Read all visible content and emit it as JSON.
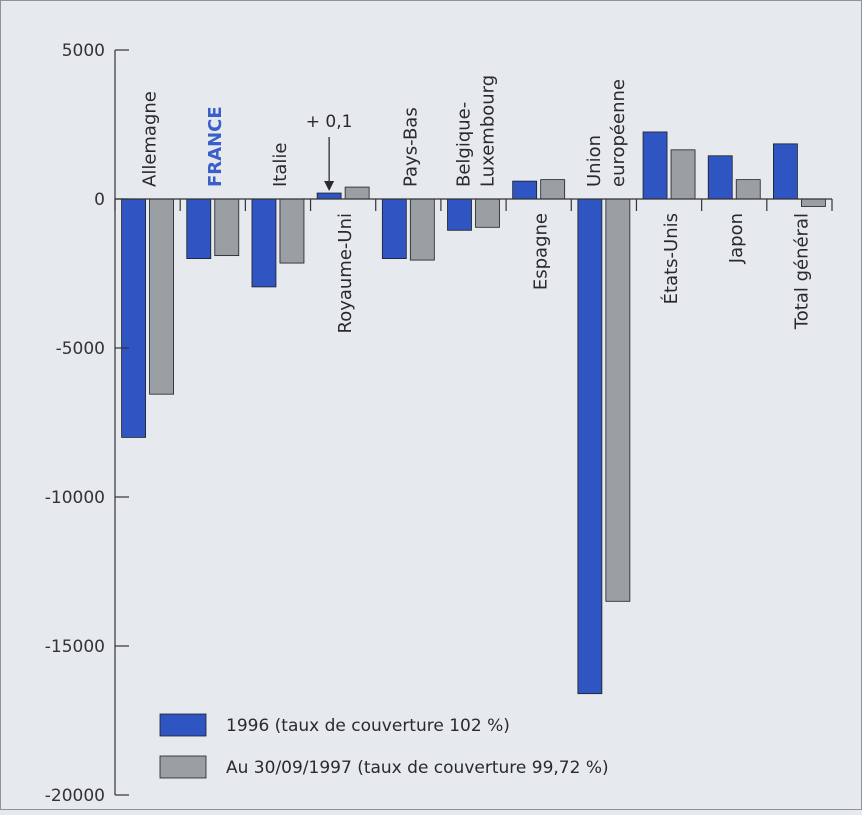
{
  "chart_data": {
    "type": "bar",
    "categories": [
      "Allemagne",
      "FRANCE",
      "Italie",
      "Royaume-Uni",
      "Pays-Bas",
      "Belgique-Luxembourg",
      "Espagne",
      "Union européenne",
      "États-Unis",
      "Japon",
      "Total général"
    ],
    "category_lines": [
      [
        "Allemagne"
      ],
      [
        "FRANCE"
      ],
      [
        "Italie"
      ],
      [
        "Royaume-Uni"
      ],
      [
        "Pays-Bas"
      ],
      [
        "Belgique-",
        "Luxembourg"
      ],
      [
        "Espagne"
      ],
      [
        "Union",
        "européenne"
      ],
      [
        "États-Unis"
      ],
      [
        "Japon"
      ],
      [
        "Total général"
      ]
    ],
    "category_label_side": [
      "above",
      "above",
      "above",
      "below",
      "above",
      "above",
      "below",
      "above",
      "below",
      "below",
      "below"
    ],
    "highlight_category": "FRANCE",
    "series": [
      {
        "name": "1996 (taux de couverture 102 %)",
        "color": "#2f55c3",
        "values": [
          -8000,
          -2000,
          -2950,
          200,
          -2000,
          -1050,
          600,
          -16600,
          2250,
          1450,
          1850
        ]
      },
      {
        "name": "Au 30/09/1997 (taux de couverture 99,72 %)",
        "color": "#9a9fa3",
        "values": [
          -6550,
          -1900,
          -2150,
          400,
          -2050,
          -950,
          650,
          -13500,
          1650,
          650,
          -250
        ]
      }
    ],
    "ylim": [
      -20000,
      5000
    ],
    "yticks": [
      5000,
      0,
      -5000,
      -10000,
      -15000,
      -20000
    ],
    "ytick_labels": [
      "5000",
      "0",
      "-5000",
      "-10000",
      "-15000",
      "-20000"
    ],
    "annotation": {
      "text": "+ 0,1",
      "category": "Royaume-Uni",
      "series": 0
    },
    "legend_position": "bottom-left",
    "grid": false,
    "colors": {
      "highlight_text": "#3a5fc8",
      "background": "#e6e9ee",
      "axis": "#333333"
    }
  }
}
